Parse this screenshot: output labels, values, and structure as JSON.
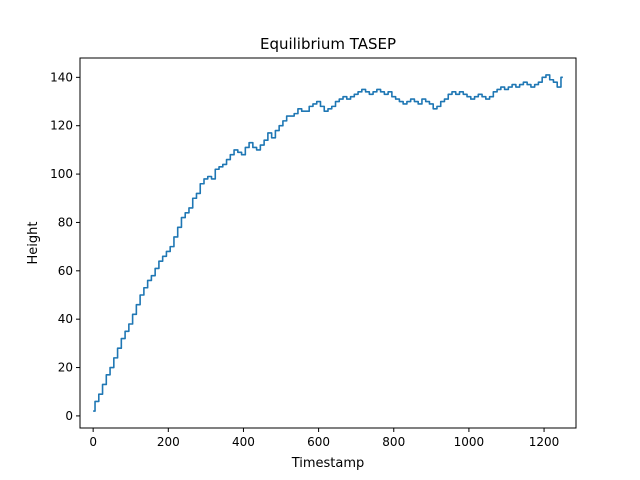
{
  "chart_data": {
    "type": "line",
    "title": "Equilibrium TASEP",
    "xlabel": "Timestamp",
    "ylabel": "Height",
    "xlim": [
      -35,
      1285
    ],
    "ylim": [
      -5,
      148
    ],
    "xticks": [
      0,
      200,
      400,
      600,
      800,
      1000,
      1200
    ],
    "yticks": [
      0,
      20,
      40,
      60,
      80,
      100,
      120,
      140
    ],
    "grid": false,
    "color": "#1f77b4",
    "series": [
      {
        "x": [
          0,
          10,
          20,
          30,
          40,
          50,
          60,
          70,
          80,
          90,
          100,
          110,
          120,
          130,
          140,
          150,
          160,
          170,
          180,
          190,
          200,
          210,
          220,
          230,
          240,
          250,
          260,
          270,
          280,
          290,
          300,
          310,
          320,
          330,
          340,
          350,
          360,
          370,
          380,
          390,
          400,
          410,
          420,
          430,
          440,
          450,
          460,
          470,
          480,
          490,
          500,
          510,
          520,
          530,
          540,
          550,
          560,
          570,
          580,
          590,
          600,
          610,
          620,
          630,
          640,
          650,
          660,
          670,
          680,
          690,
          700,
          710,
          720,
          730,
          740,
          750,
          760,
          770,
          780,
          790,
          800,
          810,
          820,
          830,
          840,
          850,
          860,
          870,
          880,
          890,
          900,
          910,
          920,
          930,
          940,
          950,
          960,
          970,
          980,
          990,
          1000,
          1010,
          1020,
          1030,
          1040,
          1050,
          1060,
          1070,
          1080,
          1090,
          1100,
          1110,
          1120,
          1130,
          1140,
          1150,
          1160,
          1170,
          1180,
          1190,
          1200,
          1210,
          1220,
          1230,
          1240,
          1250
        ],
        "y": [
          2,
          6,
          9,
          13,
          17,
          20,
          24,
          28,
          32,
          35,
          38,
          42,
          46,
          50,
          53,
          56,
          58,
          61,
          64,
          66,
          68,
          70,
          74,
          78,
          82,
          84,
          86,
          90,
          92,
          96,
          98,
          99,
          98,
          102,
          103,
          104,
          106,
          108,
          110,
          109,
          108,
          111,
          113,
          111,
          110,
          112,
          114,
          117,
          115,
          118,
          120,
          122,
          124,
          124,
          125,
          127,
          126,
          126,
          128,
          129,
          130,
          128,
          126,
          127,
          128,
          130,
          131,
          132,
          131,
          132,
          133,
          134,
          135,
          134,
          133,
          134,
          135,
          134,
          133,
          134,
          132,
          131,
          130,
          129,
          130,
          131,
          130,
          129,
          131,
          130,
          129,
          127,
          128,
          130,
          131,
          133,
          134,
          133,
          134,
          133,
          132,
          131,
          132,
          133,
          132,
          131,
          132,
          134,
          135,
          136,
          135,
          136,
          137,
          136,
          137,
          138,
          137,
          136,
          137,
          138,
          140,
          141,
          139,
          138,
          136,
          140
        ]
      }
    ]
  }
}
